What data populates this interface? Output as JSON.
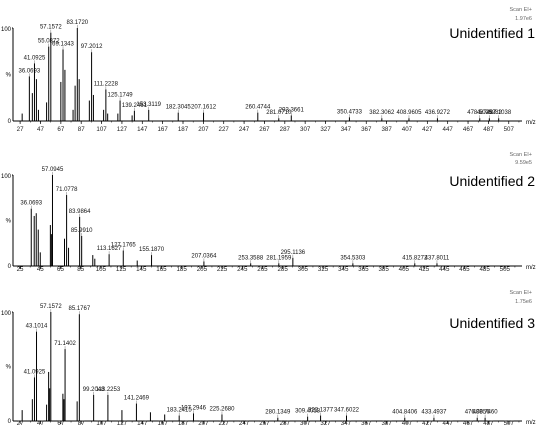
{
  "chart_data": [
    {
      "type": "bar",
      "title": "Unidentified 1",
      "scan_label": "Scan EI+",
      "intensity_label": "1.97e6",
      "xlabel": "m/z",
      "ylabel": "%",
      "ylim": [
        0,
        100
      ],
      "y_ticks": [
        "100",
        "%",
        "0"
      ],
      "x_ticks": [
        27,
        47,
        67,
        87,
        107,
        127,
        147,
        167,
        187,
        207,
        227,
        247,
        267,
        287,
        307,
        327,
        347,
        367,
        387,
        407,
        427,
        447,
        467,
        487,
        507
      ],
      "xlim": [
        20,
        520
      ],
      "peaks": [
        {
          "mz": 36.0693,
          "value": 48,
          "label": "36.0693"
        },
        {
          "mz": 41.0925,
          "value": 62,
          "label": "41.0925"
        },
        {
          "mz": 55.0872,
          "value": 80,
          "label": "55.0872"
        },
        {
          "mz": 57.1572,
          "value": 95,
          "label": "57.1572"
        },
        {
          "mz": 69.1343,
          "value": 77,
          "label": "69.1343"
        },
        {
          "mz": 83.172,
          "value": 100,
          "label": "83.1720"
        },
        {
          "mz": 97.2012,
          "value": 74,
          "label": "97.2012"
        },
        {
          "mz": 111.2228,
          "value": 34,
          "label": "111.2228"
        },
        {
          "mz": 125.1749,
          "value": 22,
          "label": "125.1749"
        },
        {
          "mz": 139.2461,
          "value": 11,
          "label": "139.2461"
        },
        {
          "mz": 153.3119,
          "value": 12,
          "label": "153.3119"
        },
        {
          "mz": 182.3045,
          "value": 9,
          "label": "182.3045"
        },
        {
          "mz": 207.1612,
          "value": 9,
          "label": "207.1612"
        },
        {
          "mz": 260.4744,
          "value": 9,
          "label": "260.4744"
        },
        {
          "mz": 281.071,
          "value": 3,
          "label": "281.0710"
        },
        {
          "mz": 293.3661,
          "value": 6,
          "label": "293.3661"
        },
        {
          "mz": 350.4733,
          "value": 4,
          "label": "350.4733"
        },
        {
          "mz": 382.3062,
          "value": 3,
          "label": "382.3062"
        },
        {
          "mz": 408.9605,
          "value": 3,
          "label": "408.9605"
        },
        {
          "mz": 436.9272,
          "value": 3,
          "label": "436.9272"
        },
        {
          "mz": 478.5025,
          "value": 3,
          "label": "478.5025"
        },
        {
          "mz": 487.9282,
          "value": 3,
          "label": "487.9282"
        },
        {
          "mz": 497.1038,
          "value": 3,
          "label": "497.1038"
        },
        {
          "mz": 29,
          "value": 8
        },
        {
          "mz": 39,
          "value": 30
        },
        {
          "mz": 43,
          "value": 45
        },
        {
          "mz": 45,
          "value": 12
        },
        {
          "mz": 53,
          "value": 20
        },
        {
          "mz": 67,
          "value": 42
        },
        {
          "mz": 71,
          "value": 55
        },
        {
          "mz": 79,
          "value": 12
        },
        {
          "mz": 81,
          "value": 38
        },
        {
          "mz": 85,
          "value": 45
        },
        {
          "mz": 95,
          "value": 22
        },
        {
          "mz": 99,
          "value": 28
        },
        {
          "mz": 109,
          "value": 12
        },
        {
          "mz": 113,
          "value": 8
        },
        {
          "mz": 123,
          "value": 8
        },
        {
          "mz": 137,
          "value": 6
        }
      ]
    },
    {
      "type": "bar",
      "title": "Unidentified 2",
      "scan_label": "Scan EI+",
      "intensity_label": "9.59e5",
      "xlabel": "m/z",
      "ylabel": "%",
      "ylim": [
        0,
        100
      ],
      "y_ticks": [
        "100",
        "%",
        "0"
      ],
      "x_ticks": [
        25,
        45,
        65,
        85,
        105,
        125,
        145,
        165,
        185,
        205,
        225,
        245,
        265,
        285,
        305,
        325,
        345,
        365,
        385,
        405,
        425,
        445,
        465,
        485,
        505
      ],
      "xlim": [
        18,
        522
      ],
      "peaks": [
        {
          "mz": 36.0693,
          "value": 63,
          "label": "36.0693"
        },
        {
          "mz": 57.0945,
          "value": 100,
          "label": "57.0945"
        },
        {
          "mz": 71.0778,
          "value": 78,
          "label": "71.0778"
        },
        {
          "mz": 83.9864,
          "value": 54,
          "label": "83.9864"
        },
        {
          "mz": 85.991,
          "value": 33,
          "label": "85.9910"
        },
        {
          "mz": 113.1627,
          "value": 13,
          "label": "113.1627"
        },
        {
          "mz": 127.1765,
          "value": 17,
          "label": "127.1765"
        },
        {
          "mz": 155.187,
          "value": 12,
          "label": "155.1870"
        },
        {
          "mz": 207.0364,
          "value": 5,
          "label": "207.0364"
        },
        {
          "mz": 253.3588,
          "value": 3,
          "label": "253.3588"
        },
        {
          "mz": 281.1959,
          "value": 3,
          "label": "281.1959"
        },
        {
          "mz": 295.1136,
          "value": 9,
          "label": "295.1136"
        },
        {
          "mz": 354.5303,
          "value": 3,
          "label": "354.5303"
        },
        {
          "mz": 415.8272,
          "value": 3,
          "label": "415.8272"
        },
        {
          "mz": 437.8011,
          "value": 3,
          "label": "437.8011"
        },
        {
          "mz": 39,
          "value": 55
        },
        {
          "mz": 41,
          "value": 58
        },
        {
          "mz": 43,
          "value": 40
        },
        {
          "mz": 45,
          "value": 15
        },
        {
          "mz": 55,
          "value": 45
        },
        {
          "mz": 56,
          "value": 35
        },
        {
          "mz": 69,
          "value": 30
        },
        {
          "mz": 73,
          "value": 20
        },
        {
          "mz": 97,
          "value": 12
        },
        {
          "mz": 99,
          "value": 8
        },
        {
          "mz": 141,
          "value": 6
        }
      ]
    },
    {
      "type": "bar",
      "title": "Unidentified 3",
      "scan_label": "Scan EI+",
      "intensity_label": "1.75e6",
      "xlabel": "m/z",
      "ylabel": "%",
      "ylim": [
        0,
        100
      ],
      "y_ticks": [
        "100",
        "%",
        "0"
      ],
      "x_ticks": [
        27,
        47,
        67,
        87,
        107,
        127,
        147,
        167,
        187,
        207,
        227,
        247,
        267,
        287,
        307,
        327,
        347,
        367,
        387,
        407,
        427,
        447,
        467,
        487,
        507
      ],
      "xlim": [
        20,
        520
      ],
      "peaks": [
        {
          "mz": 41.0925,
          "value": 40,
          "label": "41.0925"
        },
        {
          "mz": 43.1014,
          "value": 82,
          "label": "43.1014"
        },
        {
          "mz": 57.1572,
          "value": 100,
          "label": "57.1572"
        },
        {
          "mz": 71.1402,
          "value": 66,
          "label": "71.1402"
        },
        {
          "mz": 85.1767,
          "value": 98,
          "label": "85.1767"
        },
        {
          "mz": 99.2048,
          "value": 24,
          "label": "99.2048"
        },
        {
          "mz": 113.2253,
          "value": 24,
          "label": "113.2253"
        },
        {
          "mz": 141.2469,
          "value": 16,
          "label": "141.2469"
        },
        {
          "mz": 183.2415,
          "value": 5,
          "label": "183.2415"
        },
        {
          "mz": 197.2946,
          "value": 7,
          "label": "197.2946"
        },
        {
          "mz": 225.268,
          "value": 6,
          "label": "225.2680"
        },
        {
          "mz": 280.1349,
          "value": 3,
          "label": "280.1349"
        },
        {
          "mz": 309.4058,
          "value": 4,
          "label": "309.4058"
        },
        {
          "mz": 322.1377,
          "value": 5,
          "label": "322.1377"
        },
        {
          "mz": 347.6022,
          "value": 5,
          "label": "347.6022"
        },
        {
          "mz": 404.8406,
          "value": 3,
          "label": "404.8406"
        },
        {
          "mz": 433.4937,
          "value": 3,
          "label": "433.4937"
        },
        {
          "mz": 476.0056,
          "value": 3,
          "label": "476.0056"
        },
        {
          "mz": 483.746,
          "value": 3,
          "label": "483.7460"
        },
        {
          "mz": 29,
          "value": 10
        },
        {
          "mz": 39,
          "value": 20
        },
        {
          "mz": 53,
          "value": 15
        },
        {
          "mz": 55,
          "value": 45
        },
        {
          "mz": 56,
          "value": 30
        },
        {
          "mz": 69,
          "value": 25
        },
        {
          "mz": 70,
          "value": 20
        },
        {
          "mz": 83,
          "value": 18
        },
        {
          "mz": 127,
          "value": 10
        },
        {
          "mz": 155,
          "value": 8
        },
        {
          "mz": 169,
          "value": 6
        }
      ]
    }
  ]
}
